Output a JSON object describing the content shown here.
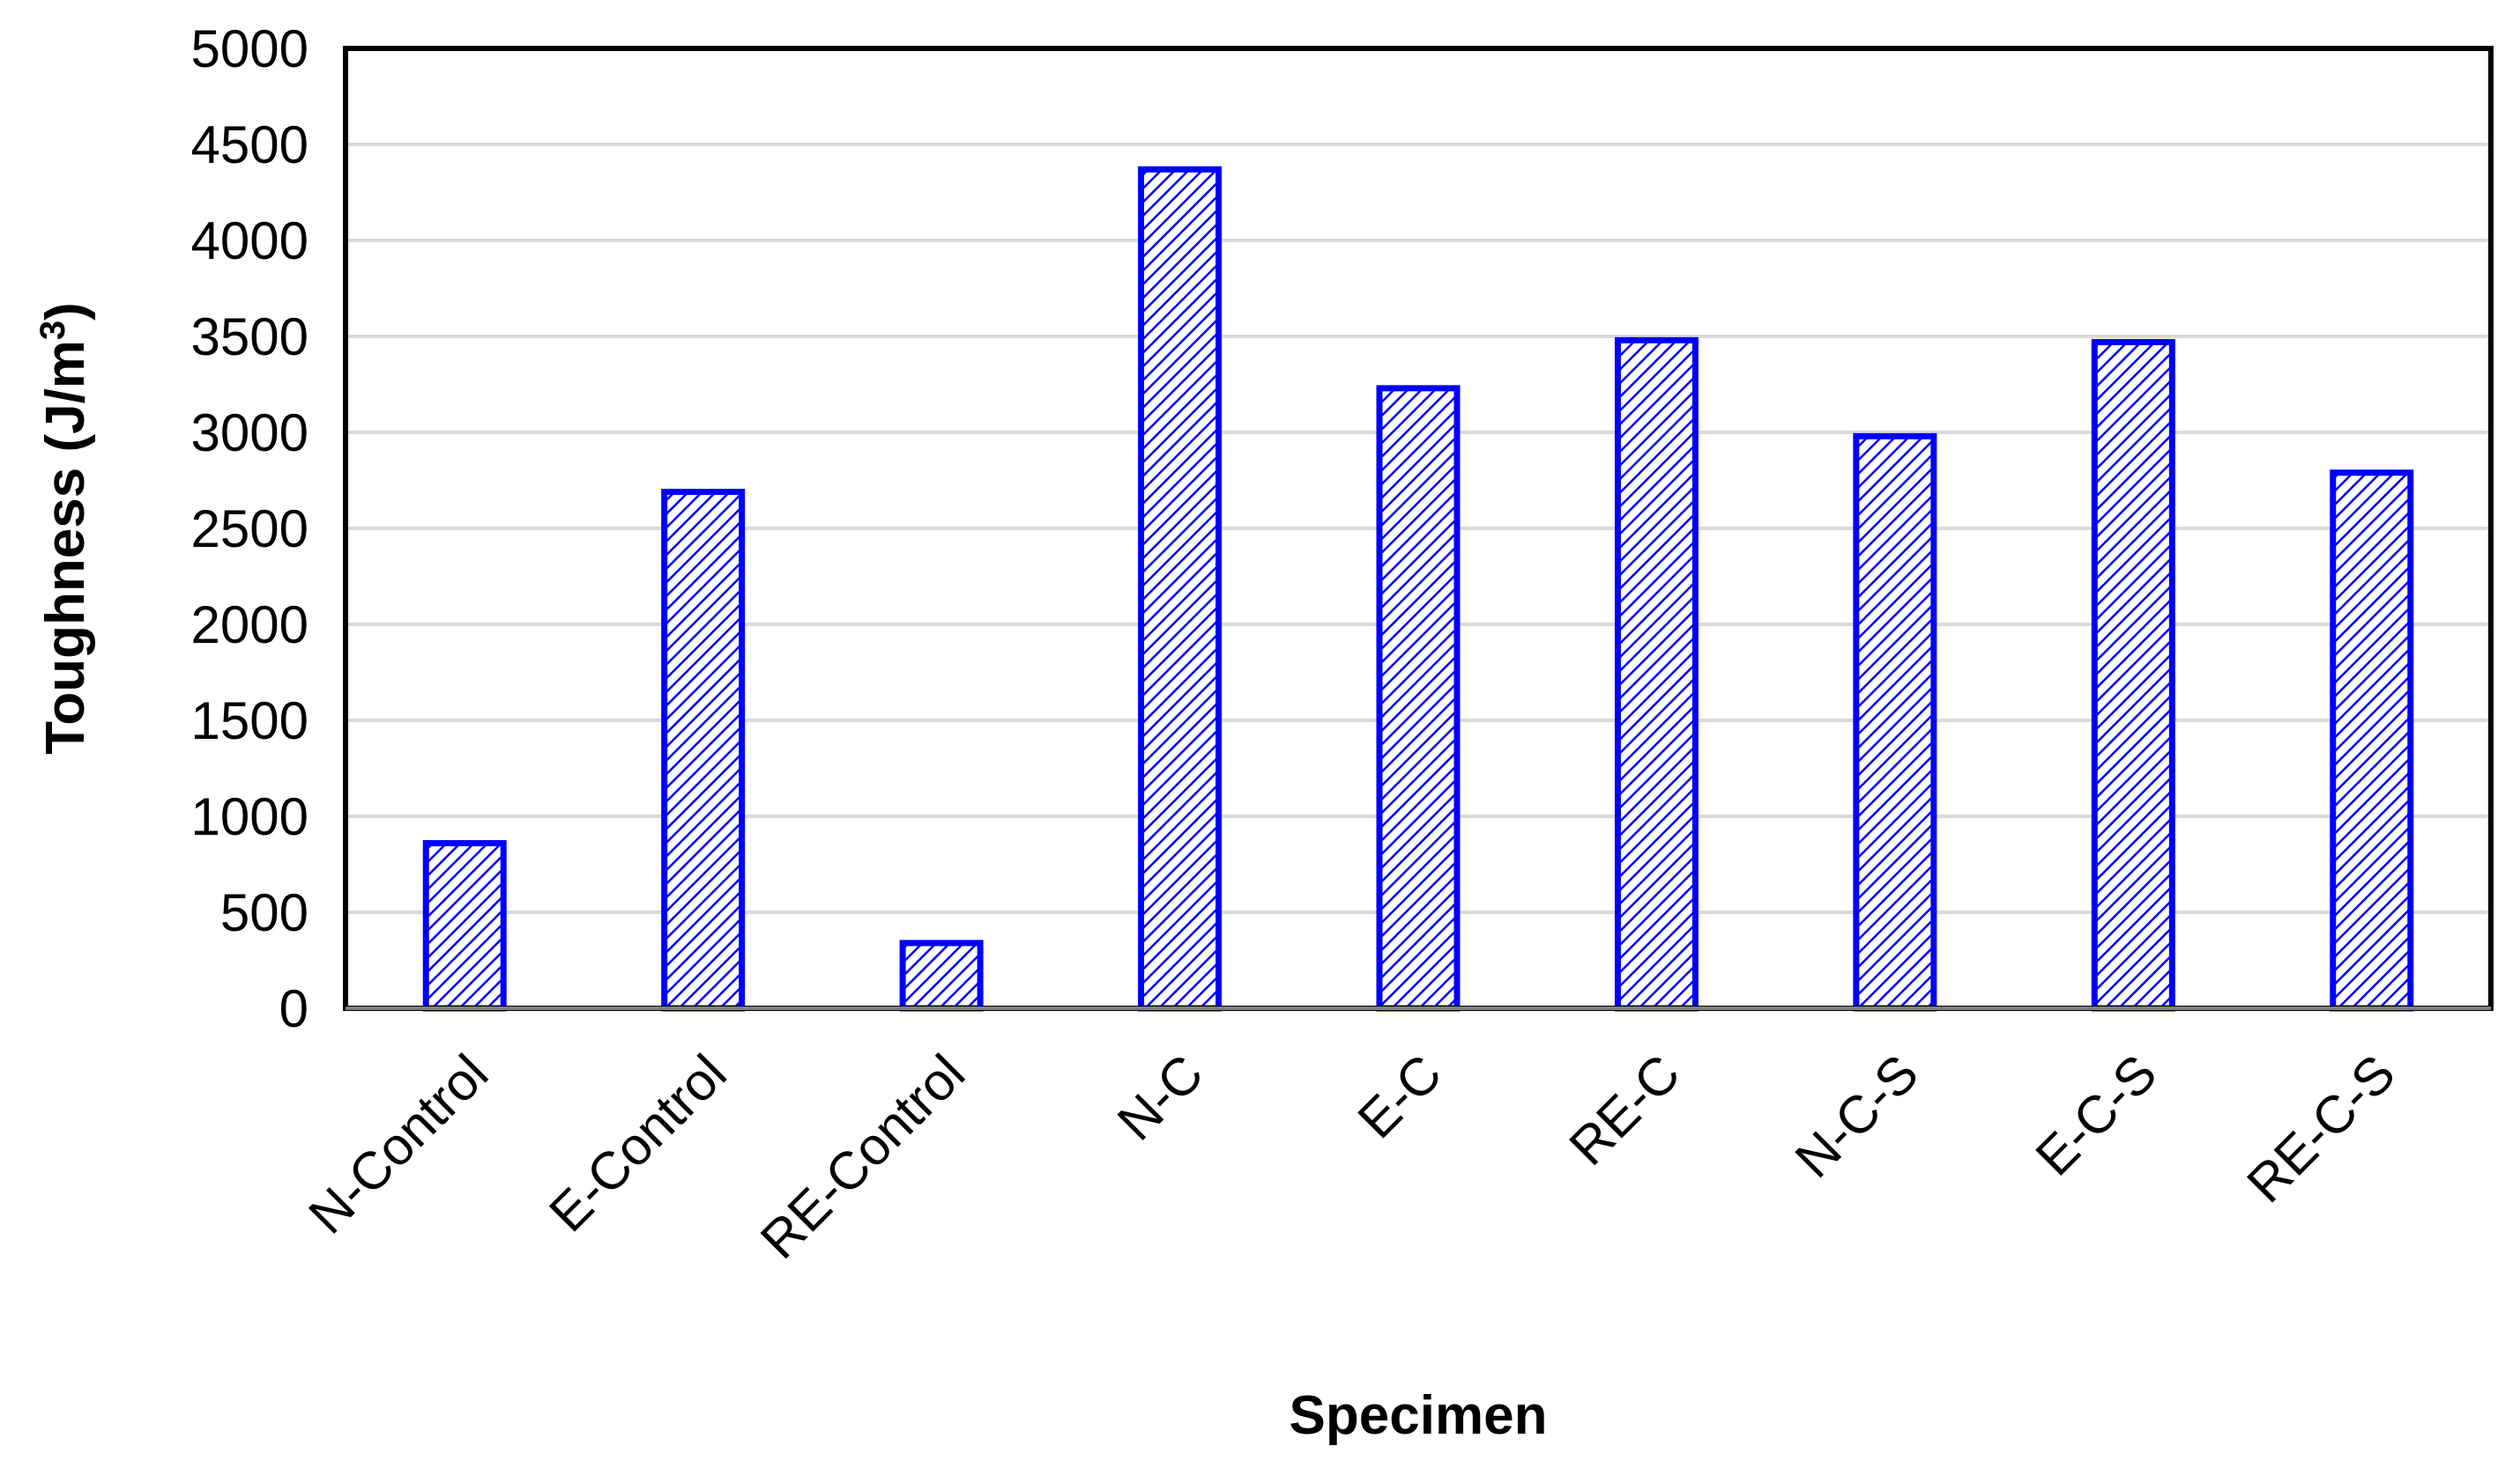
{
  "chart_data": {
    "type": "bar",
    "title": "",
    "xlabel": "Specimen",
    "ylabel": "Toughness (J/m",
    "ylabel_superscript": "3",
    "ylabel_suffix": ")",
    "categories": [
      "N-Control",
      "E-Control",
      "RE-Control",
      "N-C",
      "E-C",
      "RE-C",
      "N-C-S",
      "E-C-S",
      "RE-C-S"
    ],
    "values": [
      860,
      2690,
      340,
      4370,
      3230,
      3480,
      2980,
      3470,
      2790
    ],
    "ylim": [
      0,
      5000
    ],
    "yticks": [
      "0",
      "500",
      "1000",
      "1500",
      "2000",
      "2500",
      "3000",
      "3500",
      "4000",
      "4500",
      "5000"
    ],
    "grid": true,
    "legend": "none",
    "colors": {
      "bar_outline": "#0000ff",
      "bar_hatch": "#0000ff",
      "bar_fill": "#ffffff",
      "gridline": "#d9d9d9",
      "frame": "#000000"
    }
  }
}
